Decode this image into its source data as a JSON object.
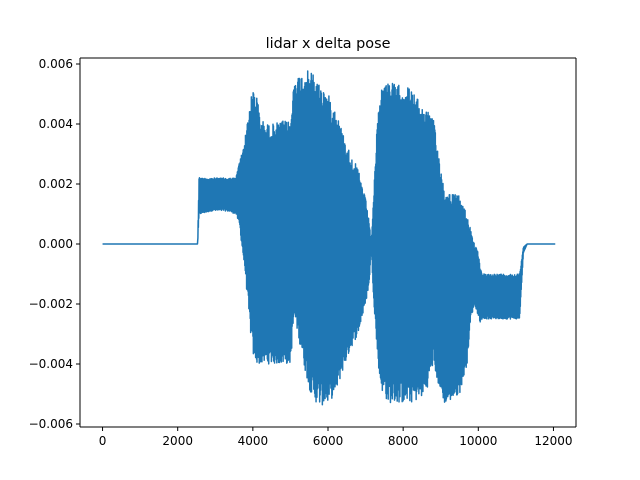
{
  "chart_data": {
    "type": "line",
    "title": "lidar x delta pose",
    "xlabel": "",
    "ylabel": "",
    "xlim": [
      -600,
      12600
    ],
    "ylim": [
      -0.0061,
      0.0062
    ],
    "xticks": [
      0,
      2000,
      4000,
      6000,
      8000,
      10000,
      12000
    ],
    "xtick_labels": [
      "0",
      "2000",
      "4000",
      "6000",
      "8000",
      "10000",
      "12000"
    ],
    "yticks": [
      -0.006,
      -0.004,
      -0.002,
      0.0,
      0.002,
      0.004,
      0.006
    ],
    "ytick_labels": [
      "−0.006",
      "−0.004",
      "−0.002",
      "0.000",
      "0.002",
      "0.004",
      "0.006"
    ],
    "grid": false,
    "color": "#1f77b4",
    "series": [
      {
        "x_range": [
          0,
          12050
        ],
        "envelope": {
          "x": [
            0,
            2530,
            2570,
            2620,
            2900,
            3300,
            3550,
            3650,
            3700,
            3800,
            3900,
            4000,
            4100,
            4200,
            4350,
            4500,
            4800,
            5000,
            5100,
            5200,
            5350,
            5500,
            5600,
            5800,
            6000,
            6200,
            6400,
            6600,
            6800,
            7000,
            7100,
            7150,
            7200,
            7300,
            7400,
            7600,
            7800,
            8000,
            8200,
            8400,
            8600,
            8800,
            9000,
            9100,
            9300,
            9500,
            9700,
            9800,
            9900,
            10000,
            10050,
            10100,
            10300,
            10700,
            11100,
            11200,
            11300,
            12050
          ],
          "upper": [
            0.0,
            0.0,
            0.0023,
            0.0022,
            0.0022,
            0.0022,
            0.0022,
            0.0028,
            0.003,
            0.0036,
            0.0045,
            0.0052,
            0.005,
            0.0042,
            0.004,
            0.004,
            0.0041,
            0.0041,
            0.0055,
            0.0056,
            0.0057,
            0.0058,
            0.0057,
            0.0053,
            0.005,
            0.0045,
            0.0037,
            0.003,
            0.0025,
            0.0015,
            0.0007,
            0.0,
            0.0012,
            0.0038,
            0.0052,
            0.0055,
            0.0053,
            0.0053,
            0.0052,
            0.0048,
            0.0045,
            0.0042,
            0.0026,
            0.0018,
            0.0017,
            0.0016,
            0.001,
            0.0005,
            0.0,
            -0.0003,
            -0.0008,
            -0.001,
            -0.001,
            -0.001,
            -0.001,
            -0.0001,
            0.0,
            0.0
          ],
          "lower": [
            0.0,
            0.0,
            0.001,
            0.001,
            0.0011,
            0.0011,
            0.001,
            0.0006,
            0.0,
            -0.001,
            -0.0025,
            -0.0037,
            -0.004,
            -0.004,
            -0.004,
            -0.004,
            -0.004,
            -0.004,
            -0.0025,
            -0.003,
            -0.004,
            -0.0048,
            -0.0052,
            -0.0054,
            -0.0053,
            -0.005,
            -0.0042,
            -0.0035,
            -0.003,
            -0.002,
            -0.0013,
            0.0,
            -0.0015,
            -0.0035,
            -0.0048,
            -0.0053,
            -0.0053,
            -0.0053,
            -0.0053,
            -0.0052,
            -0.005,
            -0.004,
            -0.005,
            -0.0053,
            -0.0052,
            -0.005,
            -0.004,
            -0.0025,
            -0.002,
            -0.0024,
            -0.0026,
            -0.0025,
            -0.0025,
            -0.0025,
            -0.0025,
            -0.0003,
            0.0,
            0.0
          ]
        }
      }
    ]
  }
}
